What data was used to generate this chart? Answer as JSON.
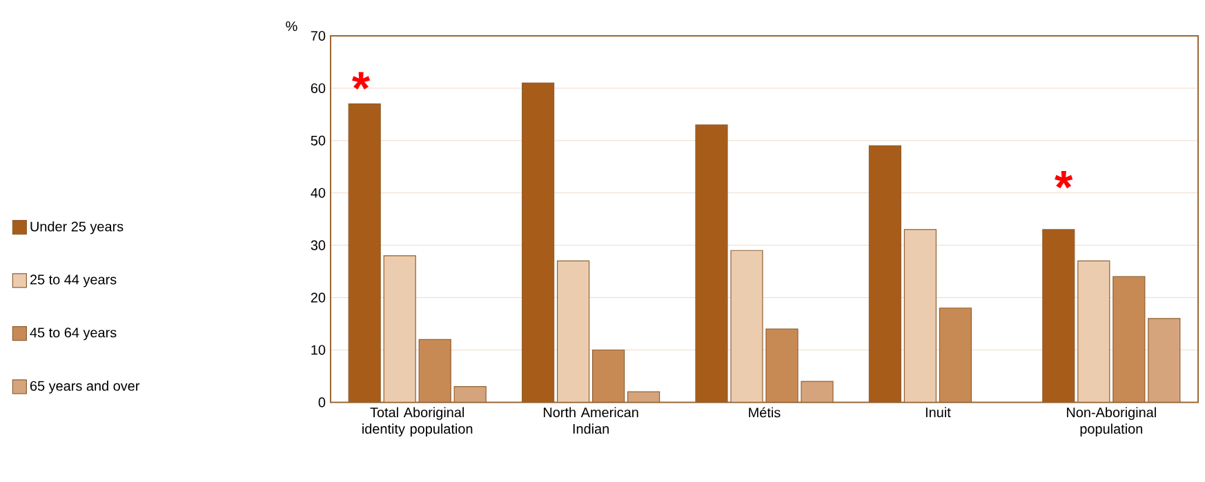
{
  "chart_data": {
    "type": "bar",
    "ylabel": "%",
    "categories": [
      "Total Aboriginal identity population",
      "North American Indian",
      "Métis",
      "Inuit",
      "Non-Aboriginal population"
    ],
    "series": [
      {
        "name": "Under 25 years",
        "color": "#a85c1a",
        "values": [
          57,
          61,
          53,
          49,
          33
        ]
      },
      {
        "name": "25 to 44 years",
        "color": "#ecccaf",
        "values": [
          28,
          27,
          29,
          33,
          27
        ]
      },
      {
        "name": "45 to 64 years",
        "color": "#c88a55",
        "values": [
          12,
          10,
          14,
          18,
          24
        ]
      },
      {
        "name": "65 years and over",
        "color": "#d6a47c",
        "values": [
          3,
          2,
          4,
          null,
          16
        ]
      }
    ],
    "ylim": [
      0,
      70
    ],
    "yticks": [
      0,
      10,
      20,
      30,
      40,
      50,
      60,
      70
    ],
    "grid": "y",
    "legend": "left",
    "annotations": [
      "*",
      "*"
    ]
  }
}
